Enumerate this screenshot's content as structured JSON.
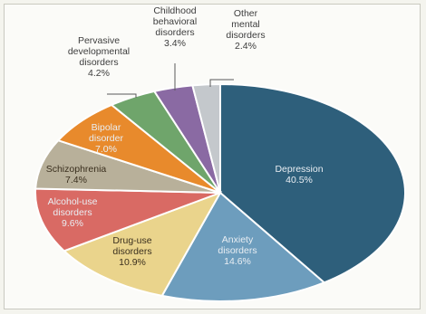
{
  "chart_data": {
    "type": "pie",
    "title": "",
    "start_angle_deg": 0,
    "direction": "clockwise",
    "slices": [
      {
        "label_lines": [
          "Depression"
        ],
        "value_label": "40.5%",
        "value": 40.5,
        "color": "#2e5f7b",
        "label_pos": "inside"
      },
      {
        "label_lines": [
          "Anxiety",
          "disorders"
        ],
        "value_label": "14.6%",
        "value": 14.6,
        "color": "#6d9dbd",
        "label_pos": "inside"
      },
      {
        "label_lines": [
          "Drug-use",
          "disorders"
        ],
        "value_label": "10.9%",
        "value": 10.9,
        "color": "#ead48c",
        "label_pos": "inside"
      },
      {
        "label_lines": [
          "Alcohol-use",
          "disorders"
        ],
        "value_label": "9.6%",
        "value": 9.6,
        "color": "#d96a64",
        "label_pos": "inside"
      },
      {
        "label_lines": [
          "Schizophrenia"
        ],
        "value_label": "7.4%",
        "value": 7.4,
        "color": "#b8b09a",
        "label_pos": "inside"
      },
      {
        "label_lines": [
          "Bipolar",
          "disorder"
        ],
        "value_label": "7.0%",
        "value": 7.0,
        "color": "#e88a2c",
        "label_pos": "inside"
      },
      {
        "label_lines": [
          "Pervasive",
          "developmental",
          "disorders"
        ],
        "value_label": "4.2%",
        "value": 4.2,
        "color": "#6fa56b",
        "label_pos": "outside"
      },
      {
        "label_lines": [
          "Childhood",
          "behavioral",
          "disorders"
        ],
        "value_label": "3.4%",
        "value": 3.4,
        "color": "#8a6aa3",
        "label_pos": "outside"
      },
      {
        "label_lines": [
          "Other",
          "mental",
          "disorders"
        ],
        "value_label": "2.4%",
        "value": 2.4,
        "color": "#c4c8cc",
        "label_pos": "outside"
      }
    ]
  }
}
